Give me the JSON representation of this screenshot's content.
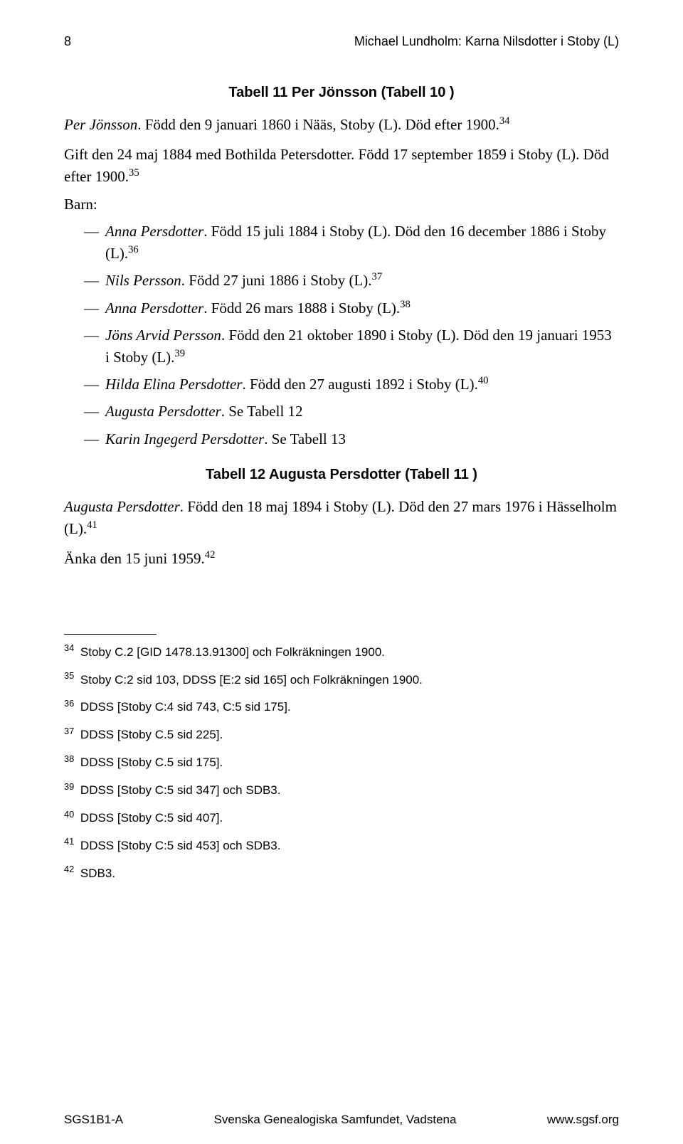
{
  "header": {
    "page_number": "8",
    "running_title": "Michael Lundholm: Karna Nilsdotter i Stoby (L)"
  },
  "tabell11": {
    "heading": "Tabell 11  Per Jönsson (Tabell 10 )",
    "subject_name": "Per Jönsson",
    "subject_rest": ". Född den 9 januari 1860 i Nääs, Stoby (L). Död efter 1900.",
    "subject_sup": "34",
    "marriage": "Gift den 24 maj 1884 med Bothilda Petersdotter. Född 17 september 1859 i Stoby (L). Död efter 1900.",
    "marriage_sup": "35",
    "barn_label": "Barn:",
    "children": [
      {
        "name": "Anna Persdotter",
        "rest": ". Född 15 juli 1884 i Stoby (L). Död den 16 december 1886 i Stoby (L).",
        "sup": "36"
      },
      {
        "name": "Nils Persson",
        "rest": ". Född 27 juni 1886 i Stoby (L).",
        "sup": "37"
      },
      {
        "name": "Anna Persdotter",
        "rest": ". Född 26 mars 1888 i Stoby (L).",
        "sup": "38"
      },
      {
        "name": "Jöns Arvid Persson",
        "rest": ". Född den 21 oktober 1890 i Stoby (L). Död den 19 januari 1953 i Stoby (L).",
        "sup": "39"
      },
      {
        "name": "Hilda Elina Persdotter",
        "rest": ". Född den 27 augusti 1892 i Stoby (L).",
        "sup": "40"
      },
      {
        "name": "Augusta Persdotter",
        "rest": ". Se Tabell 12",
        "sup": ""
      },
      {
        "name": "Karin Ingegerd Persdotter",
        "rest": ". Se Tabell 13",
        "sup": ""
      }
    ]
  },
  "tabell12": {
    "heading": "Tabell 12  Augusta Persdotter (Tabell 11 )",
    "subject_name": "Augusta Persdotter",
    "subject_rest": ". Född den 18 maj 1894 i Stoby (L). Död den 27 mars 1976 i Hässelholm (L).",
    "subject_sup": "41",
    "widow": "Änka den 15 juni 1959.",
    "widow_sup": "42"
  },
  "footnotes": [
    {
      "num": "34",
      "text": " Stoby C.2 [GID 1478.13.91300] och Folkräkningen 1900."
    },
    {
      "num": "35",
      "text": " Stoby C:2 sid 103, DDSS [E:2 sid 165] och Folkräkningen 1900."
    },
    {
      "num": "36",
      "text": " DDSS [Stoby C:4 sid 743, C:5 sid 175]."
    },
    {
      "num": "37",
      "text": " DDSS [Stoby C.5 sid 225]."
    },
    {
      "num": "38",
      "text": " DDSS [Stoby C.5 sid 175]."
    },
    {
      "num": "39",
      "text": " DDSS [Stoby C:5 sid 347] och SDB3."
    },
    {
      "num": "40",
      "text": " DDSS [Stoby C:5 sid 407]."
    },
    {
      "num": "41",
      "text": " DDSS [Stoby C:5 sid 453] och SDB3."
    },
    {
      "num": "42",
      "text": " SDB3."
    }
  ],
  "footer": {
    "left": "SGS1B1-A",
    "center": "Svenska Genealogiska Samfundet, Vadstena",
    "right": "www.sgsf.org"
  }
}
